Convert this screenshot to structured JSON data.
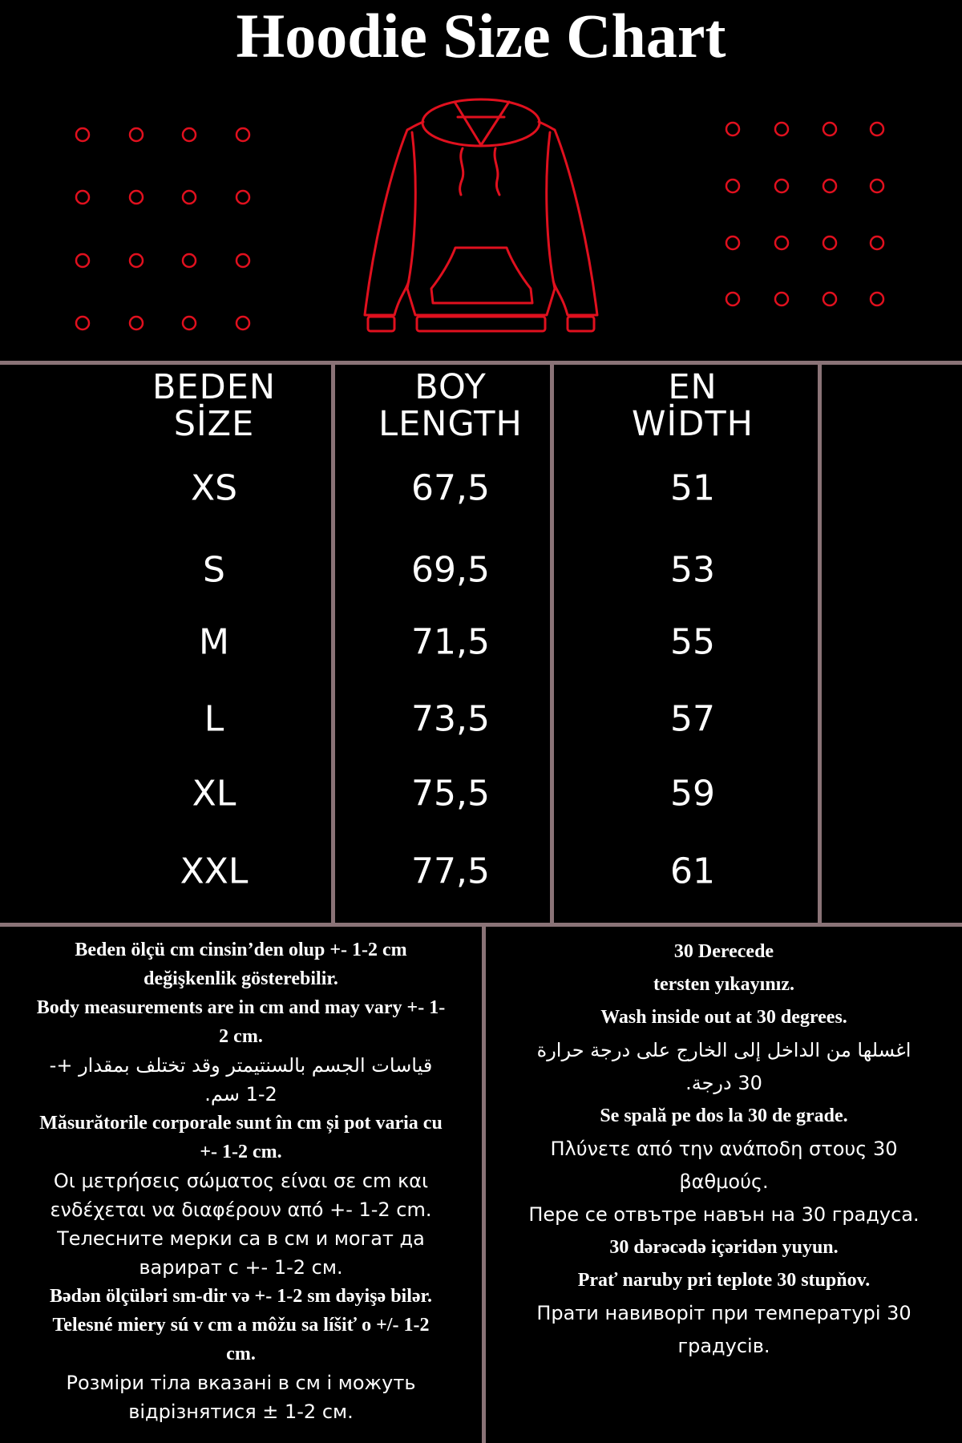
{
  "title": "Hoodie Size Chart",
  "colors": {
    "accent": "#e0101e",
    "divider": "#8a7377",
    "background": "#000000",
    "text": "#ffffff"
  },
  "icons": {
    "hoodie": "hoodie-outline-icon",
    "dots": "circle-dot-icon"
  },
  "table": {
    "headers": [
      {
        "line1": "BEDEN",
        "line2": "SİZE"
      },
      {
        "line1": "BOY",
        "line2": "LENGTH"
      },
      {
        "line1": "EN",
        "line2": "WİDTH"
      }
    ],
    "rows": [
      {
        "size": "XS",
        "length": "67,5",
        "width": "51"
      },
      {
        "size": "S",
        "length": "69,5",
        "width": "53"
      },
      {
        "size": "M",
        "length": "71,5",
        "width": "55"
      },
      {
        "size": "L",
        "length": "73,5",
        "width": "57"
      },
      {
        "size": "XL",
        "length": "75,5",
        "width": "59"
      },
      {
        "size": "XXL",
        "length": "77,5",
        "width": "61"
      }
    ]
  },
  "notes_left": [
    "Beden ölçü cm cinsin’den olup +- 1-2 cm",
    "değişkenlik gösterebilir.",
    "Body measurements are in cm and may vary +- 1-",
    "2 cm.",
    "قياسات الجسم بالسنتيمتر وقد تختلف بمقدار +-",
    "1-2 سم.",
    "Măsurătorile corporale sunt în cm și pot varia cu",
    "+- 1-2 cm.",
    "Οι μετρήσεις σώματος είναι σε cm και",
    "ενδέχεται να διαφέρουν από +- 1-2 cm.",
    "Телесните мерки са в см и могат да",
    "варират с +- 1-2 см.",
    "Bədən ölçüləri sm-dir və +- 1-2 sm dəyişə bilər.",
    "Telesné miery sú v cm a môžu sa líšiť o +/- 1-2",
    "cm.",
    "Розміри тіла вказані в см і можуть",
    "відрізнятися ± 1-2 см."
  ],
  "notes_right": [
    "30 Derecede",
    "tersten yıkayınız.",
    "Wash inside out at 30 degrees.",
    "اغسلها من الداخل إلى الخارج على درجة حرارة",
    "30 درجة.",
    "Se spală pe dos la 30 de grade.",
    "Πλύνετε από την ανάποδη στους 30",
    "βαθμούς.",
    "Пере се отвътре навън на 30 градуса.",
    "30 dərəcədə içəridən yuyun.",
    "Prať naruby pri teplote 30 stupňov.",
    "Прати навиворіт при температурі 30",
    "градусів."
  ]
}
